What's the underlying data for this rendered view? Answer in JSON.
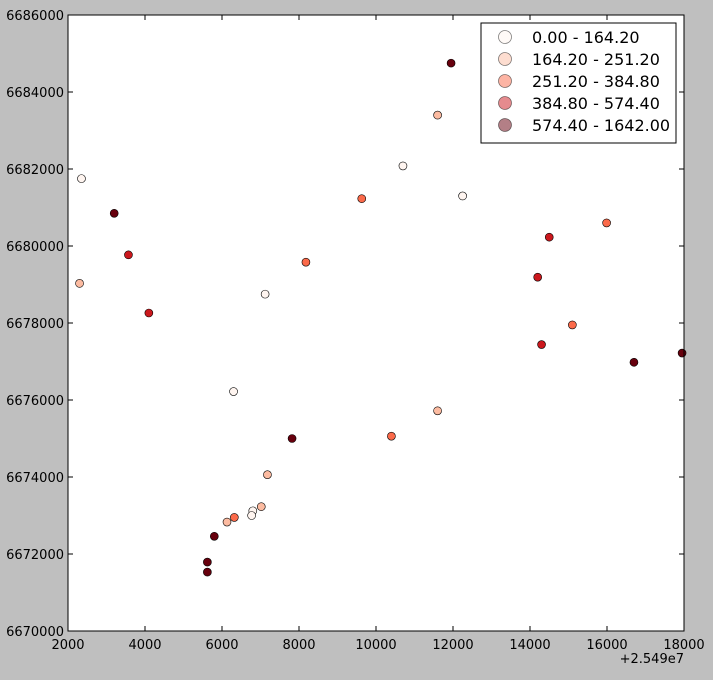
{
  "chart_data": {
    "type": "scatter",
    "x_offset_label": "+2.549e7",
    "xlim": [
      2000,
      18000
    ],
    "ylim": [
      6670000,
      6686000
    ],
    "x_ticks": [
      2000,
      4000,
      6000,
      8000,
      10000,
      12000,
      14000,
      16000,
      18000
    ],
    "x_tick_labels": [
      "2000",
      "4000",
      "6000",
      "8000",
      "10000",
      "12000",
      "14000",
      "16000",
      "18000"
    ],
    "y_ticks": [
      6670000,
      6672000,
      6674000,
      6676000,
      6678000,
      6680000,
      6682000,
      6684000,
      6686000
    ],
    "y_tick_labels": [
      "6670000",
      "6672000",
      "6674000",
      "6676000",
      "6678000",
      "6680000",
      "6682000",
      "6684000",
      "6686000"
    ],
    "grid": false,
    "legend_position": "top-right",
    "classes": [
      {
        "label": "0.00 - 164.20",
        "color": "#fff5f0"
      },
      {
        "label": "164.20 - 251.20",
        "color": "#fcbba1"
      },
      {
        "label": "251.20 - 384.80",
        "color": "#fb6a4a"
      },
      {
        "label": "384.80 - 574.40",
        "color": "#cb181d"
      },
      {
        "label": "574.40 - 1642.00",
        "color": "#67000d"
      }
    ],
    "points": [
      {
        "x": 2350,
        "y": 6681750,
        "class": 0
      },
      {
        "x": 2300,
        "y": 6679030,
        "class": 1
      },
      {
        "x": 3200,
        "y": 6680850,
        "class": 4
      },
      {
        "x": 3570,
        "y": 6679770,
        "class": 3
      },
      {
        "x": 4100,
        "y": 6678260,
        "class": 3
      },
      {
        "x": 7120,
        "y": 6678750,
        "class": 0
      },
      {
        "x": 8180,
        "y": 6679580,
        "class": 2
      },
      {
        "x": 9630,
        "y": 6681230,
        "class": 2
      },
      {
        "x": 10700,
        "y": 6682080,
        "class": 0
      },
      {
        "x": 11600,
        "y": 6683400,
        "class": 1
      },
      {
        "x": 11950,
        "y": 6684750,
        "class": 4
      },
      {
        "x": 12250,
        "y": 6681300,
        "class": 0
      },
      {
        "x": 14500,
        "y": 6680230,
        "class": 3
      },
      {
        "x": 14200,
        "y": 6679190,
        "class": 3
      },
      {
        "x": 15990,
        "y": 6680600,
        "class": 2
      },
      {
        "x": 15100,
        "y": 6677950,
        "class": 2
      },
      {
        "x": 14300,
        "y": 6677440,
        "class": 3
      },
      {
        "x": 16700,
        "y": 6676980,
        "class": 4
      },
      {
        "x": 17950,
        "y": 6677220,
        "class": 4
      },
      {
        "x": 6300,
        "y": 6676220,
        "class": 0
      },
      {
        "x": 11600,
        "y": 6675720,
        "class": 1
      },
      {
        "x": 10400,
        "y": 6675060,
        "class": 2
      },
      {
        "x": 7820,
        "y": 6675000,
        "class": 4
      },
      {
        "x": 7180,
        "y": 6674060,
        "class": 1
      },
      {
        "x": 7020,
        "y": 6673230,
        "class": 1
      },
      {
        "x": 6800,
        "y": 6673120,
        "class": 0
      },
      {
        "x": 6770,
        "y": 6673000,
        "class": 0
      },
      {
        "x": 6320,
        "y": 6672950,
        "class": 2
      },
      {
        "x": 6130,
        "y": 6672830,
        "class": 1
      },
      {
        "x": 5800,
        "y": 6672460,
        "class": 4
      },
      {
        "x": 5620,
        "y": 6671790,
        "class": 4
      },
      {
        "x": 5620,
        "y": 6671530,
        "class": 4
      }
    ]
  }
}
